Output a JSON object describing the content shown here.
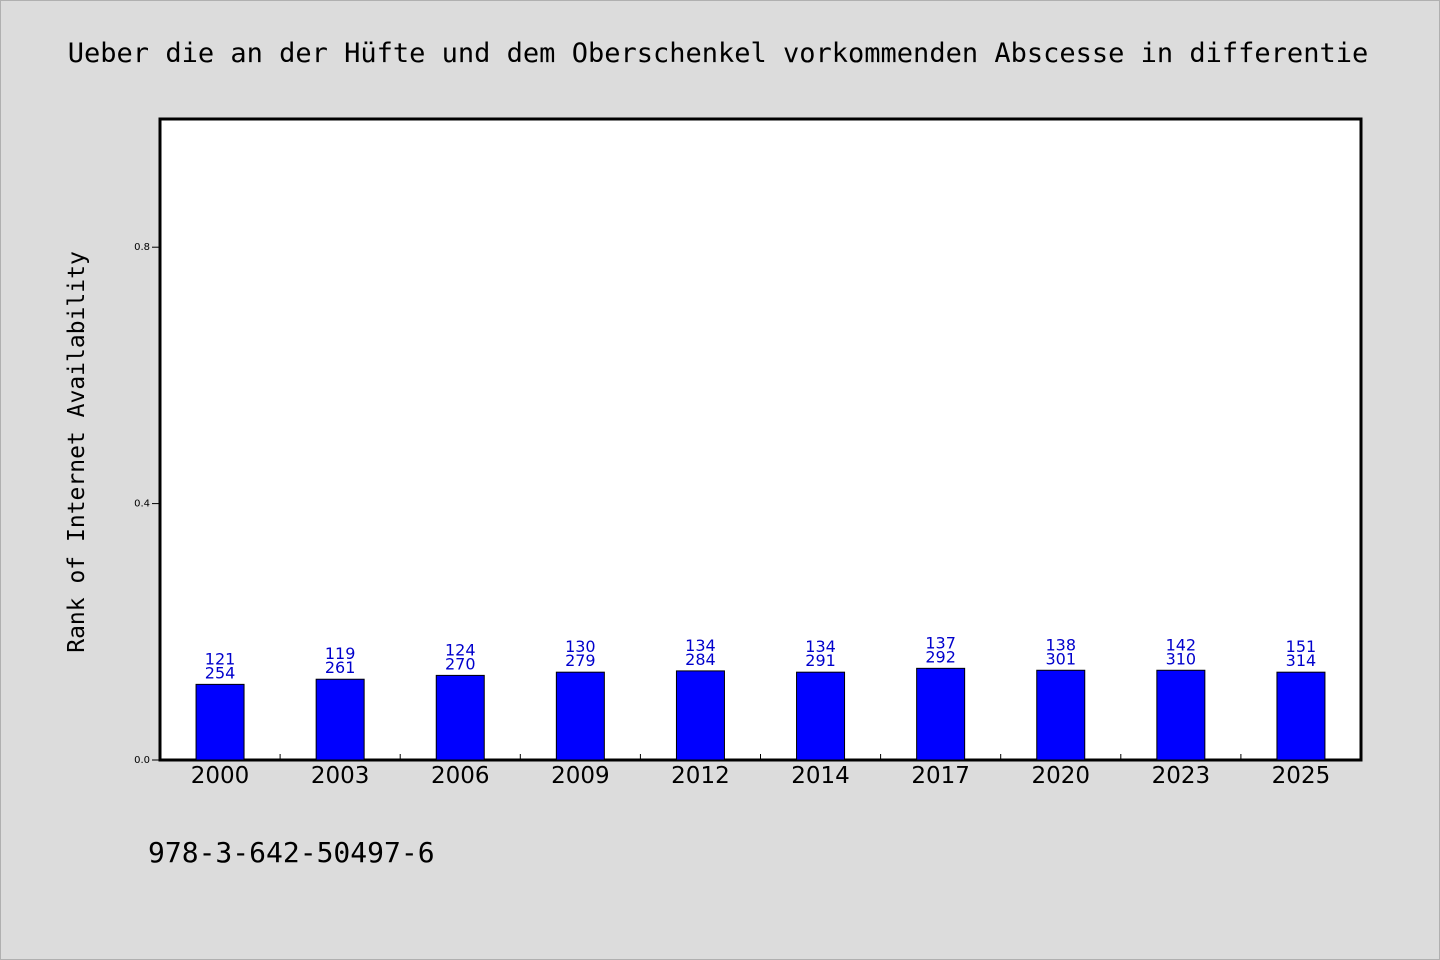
{
  "chart_data": {
    "type": "bar",
    "title": "Ueber die an der Hüfte und dem Oberschenkel vorkommenden Abscesse in differentie",
    "ylabel": "Rank of Internet Availability",
    "xlabel": "",
    "ylim": [
      0,
      1
    ],
    "yticks": [
      "0.0",
      "0.4",
      "0.8"
    ],
    "ytick_values": [
      0.0,
      0.4,
      0.8
    ],
    "categories": [
      "2000",
      "2003",
      "2006",
      "2009",
      "2012",
      "2014",
      "2017",
      "2020",
      "2023",
      "2025"
    ],
    "values": [
      0.118,
      0.126,
      0.132,
      0.137,
      0.139,
      0.137,
      0.143,
      0.14,
      0.14,
      0.137
    ],
    "label_top": [
      "121",
      "119",
      "124",
      "130",
      "134",
      "134",
      "137",
      "138",
      "142",
      "151"
    ],
    "label_bottom": [
      "254",
      "261",
      "270",
      "279",
      "284",
      "291",
      "292",
      "301",
      "310",
      "314"
    ],
    "bar_color": "#0000ff",
    "label_color": "#0000cc",
    "grid": false,
    "legend": "none"
  },
  "footer": {
    "isbn": "978-3-642-50497-6"
  }
}
